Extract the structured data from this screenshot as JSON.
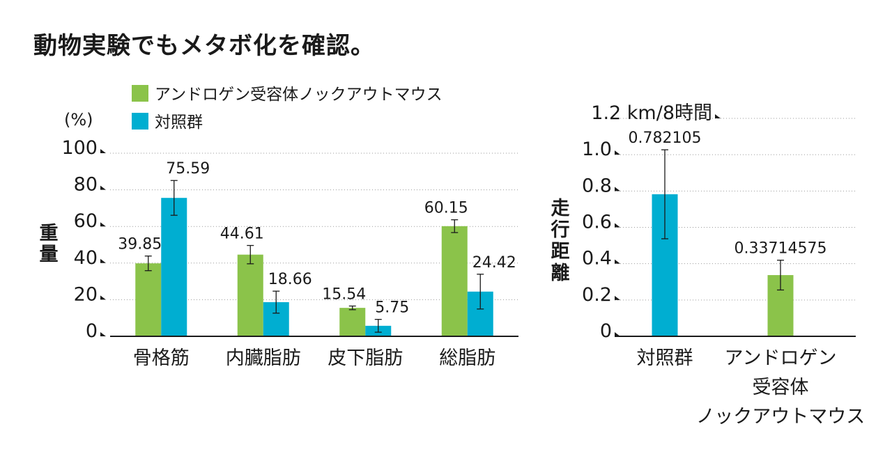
{
  "title": "動物実験でもメタボ化を確認。",
  "chart_data": [
    {
      "type": "bar",
      "unit": "(%)",
      "ylabel": "重量",
      "ylim": [
        0,
        100
      ],
      "yticks": [
        "0",
        "20",
        "40",
        "60",
        "80",
        "100"
      ],
      "grid": "dotted",
      "legend_position": "top",
      "categories": [
        "骨格筋",
        "内臓脂肪",
        "皮下脂肪",
        "総脂肪"
      ],
      "series": [
        {
          "name": "アンドロゲン受容体ノックアウトマウス",
          "color": "#8bc34a",
          "values": [
            39.85,
            44.61,
            15.54,
            60.15
          ],
          "labels": [
            "39.85",
            "44.61",
            "15.54",
            "60.15"
          ],
          "errors": [
            4,
            5,
            1,
            3.5
          ]
        },
        {
          "name": "対照群",
          "color": "#00aed1",
          "values": [
            75.59,
            18.66,
            5.75,
            24.42
          ],
          "labels": [
            "75.59",
            "18.66",
            "5.75",
            "24.42"
          ],
          "errors": [
            9.5,
            6,
            3.5,
            9.5
          ]
        }
      ]
    },
    {
      "type": "bar",
      "ylabel": "走行距離",
      "ylim": [
        0,
        1.2
      ],
      "yticks": [
        "0",
        "0.2",
        "0.4",
        "0.6",
        "0.8",
        "1.0",
        "1.2 km/8時間"
      ],
      "grid": "dotted",
      "categories": [
        "対照群",
        "アンドロゲン受容体ノックアウトマウス"
      ],
      "category_lines": [
        [
          "対照群"
        ],
        [
          "アンドロゲン",
          "受容体",
          "ノックアウトマウス"
        ]
      ],
      "values": [
        0.782105,
        0.33714575
      ],
      "labels": [
        "0.782105",
        "0.33714575"
      ],
      "colors": [
        "#00aed1",
        "#8bc34a"
      ],
      "errors": [
        0.245,
        0.082
      ]
    }
  ]
}
